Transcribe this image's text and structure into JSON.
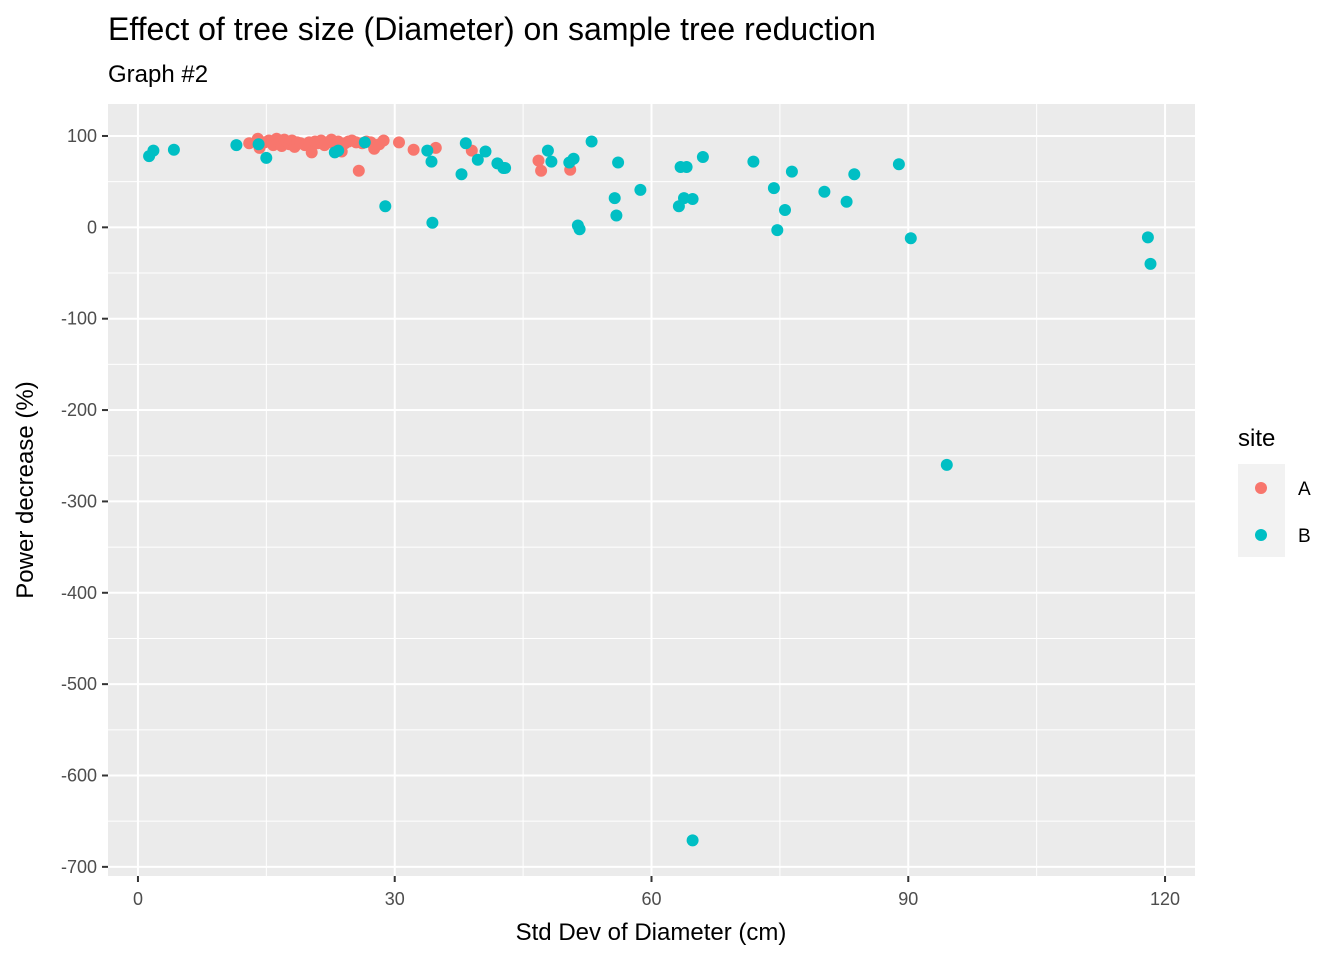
{
  "chart_data": {
    "type": "scatter",
    "title": "Effect of tree size (Diameter) on sample tree reduction",
    "subtitle": "Graph #2",
    "xlabel": "Std Dev of Diameter (cm)",
    "ylabel": "Power decrease (%)",
    "xlim": [
      -3.5,
      123.5
    ],
    "ylim": [
      -710,
      135
    ],
    "x_ticks": [
      0,
      30,
      60,
      90,
      120
    ],
    "x_tick_labels": [
      "0",
      "30",
      "60",
      "90",
      "120"
    ],
    "y_ticks": [
      100,
      0,
      -100,
      -200,
      -300,
      -400,
      -500,
      -600,
      -700
    ],
    "y_tick_labels": [
      "100",
      "0",
      "-100",
      "-200",
      "-300",
      "-400",
      "-500",
      "-600",
      "-700"
    ],
    "grid": true,
    "legend": {
      "title": "site",
      "position": "right"
    },
    "series": [
      {
        "name": "A",
        "color": "#F8766D",
        "points": [
          [
            13.0,
            92
          ],
          [
            14.0,
            97
          ],
          [
            14.2,
            87
          ],
          [
            14.8,
            93
          ],
          [
            15.3,
            95
          ],
          [
            15.8,
            90
          ],
          [
            16.2,
            97
          ],
          [
            16.5,
            93
          ],
          [
            16.8,
            89
          ],
          [
            17.1,
            96
          ],
          [
            17.4,
            94
          ],
          [
            17.7,
            91
          ],
          [
            18.0,
            95
          ],
          [
            18.3,
            88
          ],
          [
            18.6,
            93
          ],
          [
            19.0,
            92
          ],
          [
            19.5,
            90
          ],
          [
            20.0,
            93
          ],
          [
            20.3,
            82
          ],
          [
            20.7,
            94
          ],
          [
            21.0,
            92
          ],
          [
            21.4,
            95
          ],
          [
            21.8,
            90
          ],
          [
            22.2,
            93
          ],
          [
            22.6,
            96
          ],
          [
            23.0,
            91
          ],
          [
            23.4,
            94
          ],
          [
            23.8,
            83
          ],
          [
            24.2,
            92
          ],
          [
            24.6,
            94
          ],
          [
            25.0,
            95
          ],
          [
            25.5,
            93
          ],
          [
            25.8,
            62
          ],
          [
            26.2,
            92
          ],
          [
            26.7,
            94
          ],
          [
            27.2,
            93
          ],
          [
            27.6,
            86
          ],
          [
            28.2,
            91
          ],
          [
            28.7,
            95
          ],
          [
            30.5,
            93
          ],
          [
            32.2,
            85
          ],
          [
            34.8,
            87
          ],
          [
            39.0,
            84
          ],
          [
            46.8,
            73
          ],
          [
            47.1,
            62
          ],
          [
            50.5,
            63
          ]
        ]
      },
      {
        "name": "B",
        "color": "#00BFC4",
        "points": [
          [
            1.3,
            78
          ],
          [
            1.8,
            84
          ],
          [
            4.2,
            85
          ],
          [
            11.5,
            90
          ],
          [
            14.1,
            91
          ],
          [
            15.0,
            76
          ],
          [
            23.0,
            82
          ],
          [
            23.4,
            84
          ],
          [
            26.5,
            93
          ],
          [
            28.9,
            23
          ],
          [
            33.8,
            84
          ],
          [
            34.3,
            72
          ],
          [
            34.4,
            5
          ],
          [
            37.8,
            58
          ],
          [
            38.3,
            92
          ],
          [
            39.7,
            74
          ],
          [
            40.6,
            83
          ],
          [
            42.0,
            70
          ],
          [
            42.7,
            65
          ],
          [
            42.9,
            65
          ],
          [
            47.9,
            84
          ],
          [
            48.3,
            72
          ],
          [
            50.4,
            71
          ],
          [
            50.9,
            75
          ],
          [
            51.4,
            2
          ],
          [
            51.6,
            -2
          ],
          [
            53.0,
            94
          ],
          [
            55.7,
            32
          ],
          [
            55.9,
            13
          ],
          [
            56.1,
            71
          ],
          [
            58.7,
            41
          ],
          [
            63.2,
            23
          ],
          [
            63.4,
            66
          ],
          [
            63.8,
            32
          ],
          [
            64.1,
            66
          ],
          [
            64.8,
            31
          ],
          [
            64.8,
            -671
          ],
          [
            66.0,
            77
          ],
          [
            71.9,
            72
          ],
          [
            74.3,
            43
          ],
          [
            74.7,
            -3
          ],
          [
            75.6,
            19
          ],
          [
            76.4,
            61
          ],
          [
            80.2,
            39
          ],
          [
            82.8,
            28
          ],
          [
            83.7,
            58
          ],
          [
            88.9,
            69
          ],
          [
            90.3,
            -12
          ],
          [
            94.5,
            -260
          ],
          [
            118.0,
            -11
          ],
          [
            118.3,
            -40
          ]
        ]
      }
    ]
  }
}
